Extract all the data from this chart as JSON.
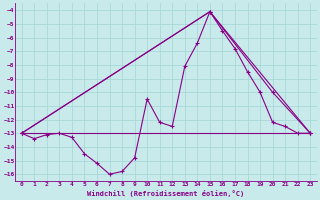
{
  "xlabel": "Windchill (Refroidissement éolien,°C)",
  "background_color": "#c8eaea",
  "grid_color": "#a8d8d8",
  "line_color": "#880088",
  "xlim": [
    -0.5,
    23.5
  ],
  "ylim": [
    -16.5,
    -3.5
  ],
  "yticks": [
    -16,
    -15,
    -14,
    -13,
    -12,
    -11,
    -10,
    -9,
    -8,
    -7,
    -6,
    -5,
    -4
  ],
  "xticks": [
    0,
    1,
    2,
    3,
    4,
    5,
    6,
    7,
    8,
    9,
    10,
    11,
    12,
    13,
    14,
    15,
    16,
    17,
    18,
    19,
    20,
    21,
    22,
    23
  ],
  "series": [
    {
      "x": [
        0,
        1,
        2,
        3,
        4,
        5,
        6,
        7,
        8,
        9,
        10,
        11,
        12,
        13,
        14,
        15,
        16,
        17,
        18,
        19,
        20,
        21,
        22,
        23
      ],
      "y": [
        -13,
        -13.4,
        -13.1,
        -13.0,
        -13.3,
        -14.5,
        -15.2,
        -16.0,
        -15.8,
        -14.8,
        -10.5,
        -12.2,
        -12.5,
        -8.1,
        -6.4,
        -4.1,
        -5.5,
        -6.8,
        -8.5,
        -10.0,
        -12.2,
        -12.5,
        -13.0,
        -13.0
      ]
    },
    {
      "x": [
        0,
        23
      ],
      "y": [
        -13.0,
        -13.0
      ]
    },
    {
      "x": [
        0,
        15,
        23
      ],
      "y": [
        -13.0,
        -4.1,
        -13.0
      ]
    },
    {
      "x": [
        0,
        15,
        20,
        23
      ],
      "y": [
        -13.0,
        -4.1,
        -10.0,
        -13.0
      ]
    }
  ]
}
